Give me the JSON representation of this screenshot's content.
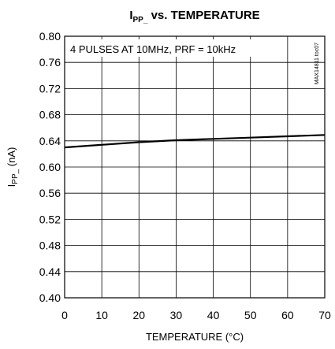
{
  "chart_data": {
    "type": "line",
    "title_main": "I",
    "title_sub": "PP_",
    "title_rest": " vs. TEMPERATURE",
    "xlabel": "TEMPERATURE (°C)",
    "ylabel_main": "I",
    "ylabel_sub": "PP_",
    "ylabel_rest": " (nA)",
    "annotation": "4 PULSES AT 10MHz, PRF = 10kHz",
    "side_id": "MAX14811 toc07",
    "xlim": [
      0,
      70
    ],
    "ylim": [
      0.4,
      0.8
    ],
    "x_ticks": [
      "0",
      "10",
      "20",
      "30",
      "40",
      "50",
      "60",
      "70"
    ],
    "y_ticks": [
      "0.80",
      "0.76",
      "0.72",
      "0.68",
      "0.64",
      "0.60",
      "0.56",
      "0.52",
      "0.48",
      "0.44",
      "0.40"
    ],
    "grid": true,
    "series": [
      {
        "color": "#000000",
        "x": [
          0,
          10,
          20,
          30,
          40,
          50,
          60,
          70
        ],
        "y": [
          0.63,
          0.634,
          0.638,
          0.641,
          0.643,
          0.645,
          0.647,
          0.649
        ]
      }
    ]
  }
}
